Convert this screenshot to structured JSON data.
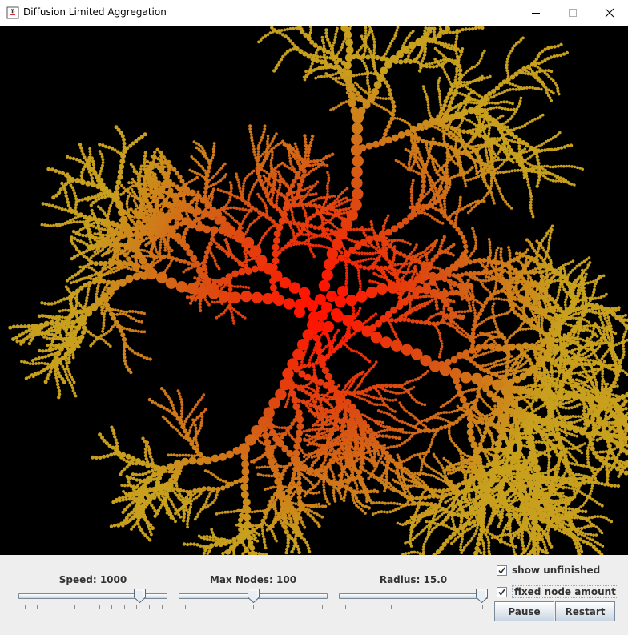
{
  "window": {
    "title": "Diffusion Limited Aggregation",
    "minimize_icon": "minimize-icon",
    "maximize_icon": "maximize-icon",
    "close_icon": "close-icon"
  },
  "canvas": {
    "background": "#000000",
    "colors": {
      "core": "#ff1a00",
      "mid": "#e04a10",
      "outer": "#d27a20",
      "tip": "#c8a020"
    }
  },
  "controls": {
    "speed": {
      "label": "Speed: 1000",
      "value": 1000,
      "fraction": 0.84,
      "ticks": 12
    },
    "max_nodes": {
      "label": "Max Nodes: 100",
      "value": 100,
      "fraction": 0.5,
      "ticks": 3
    },
    "radius": {
      "label": "Radius: 15.0",
      "value": 15.0,
      "fraction": 1.0,
      "ticks": 4
    },
    "show_unfinished": {
      "label": "show unfinished",
      "checked": true
    },
    "fixed_node_amount": {
      "label": "fixed node amount",
      "checked": true
    },
    "pause_label": "Pause",
    "restart_label": "Restart"
  }
}
